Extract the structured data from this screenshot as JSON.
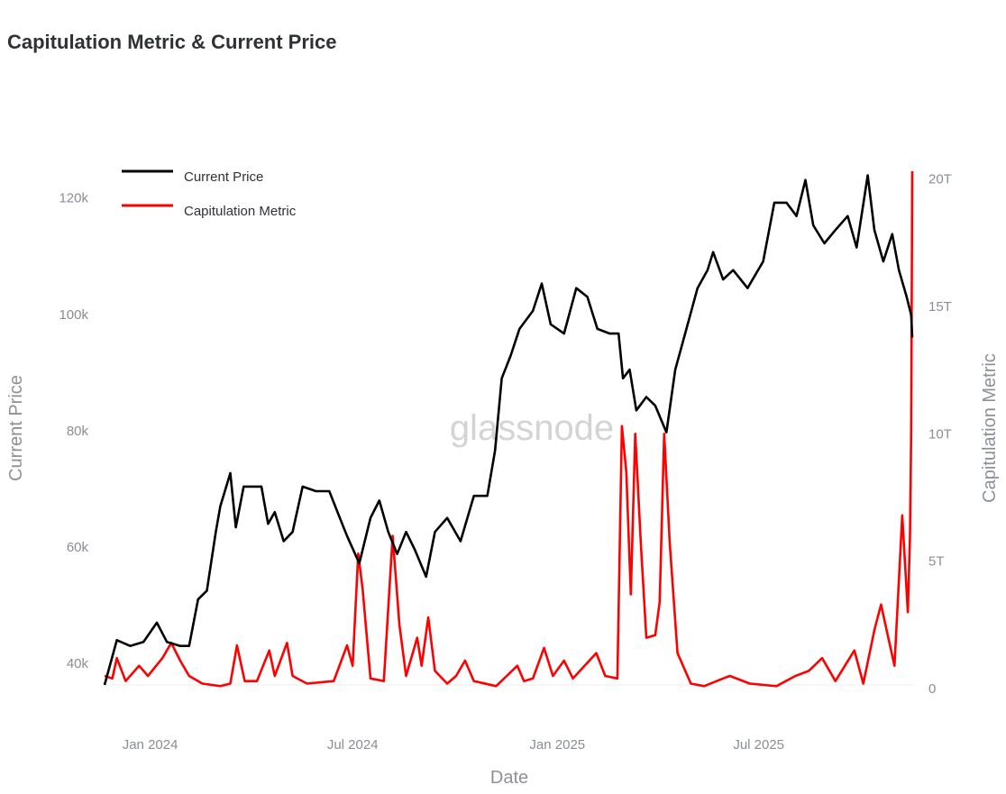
{
  "chart_data": {
    "type": "line",
    "title": "Capitulation Metric & Current Price",
    "xlabel": "Date",
    "ylabel_left": "Current Price",
    "ylabel_right": "Capitulation Metric",
    "watermark": "glassnode",
    "xlim": [
      "2023-11-21",
      "2025-11-16"
    ],
    "ylim_left": [
      33200,
      124600
    ],
    "ylim_right": [
      -0.56,
      20.3
    ],
    "grid": false,
    "legend_position": "top-left",
    "x_ticks": [
      {
        "date": "2024-01-01",
        "label": "Jan 2024"
      },
      {
        "date": "2024-07-01",
        "label": "Jul 2024"
      },
      {
        "date": "2025-01-01",
        "label": "Jan 2025"
      },
      {
        "date": "2025-07-01",
        "label": "Jul 2025"
      }
    ],
    "y_ticks_left": [
      {
        "value": 40000,
        "label": "40k"
      },
      {
        "value": 60000,
        "label": "60k"
      },
      {
        "value": 80000,
        "label": "80k"
      },
      {
        "value": 100000,
        "label": "100k"
      },
      {
        "value": 120000,
        "label": "120k"
      }
    ],
    "y_ticks_right": [
      {
        "value": 0,
        "label": "0"
      },
      {
        "value": 5,
        "label": "5T"
      },
      {
        "value": 10,
        "label": "10T"
      },
      {
        "value": 15,
        "label": "15T"
      },
      {
        "value": 20,
        "label": "20T"
      }
    ],
    "series": [
      {
        "name": "Current Price",
        "color": "#000000",
        "axis": "left",
        "points": [
          [
            "2023-11-21",
            36300
          ],
          [
            "2023-12-02",
            44000
          ],
          [
            "2023-12-14",
            43000
          ],
          [
            "2023-12-26",
            43700
          ],
          [
            "2024-01-07",
            47000
          ],
          [
            "2024-01-16",
            43700
          ],
          [
            "2024-01-28",
            43000
          ],
          [
            "2024-02-05",
            43000
          ],
          [
            "2024-02-13",
            51000
          ],
          [
            "2024-02-21",
            52500
          ],
          [
            "2024-02-29",
            62600
          ],
          [
            "2024-03-04",
            67000
          ],
          [
            "2024-03-13",
            72700
          ],
          [
            "2024-03-18",
            63400
          ],
          [
            "2024-03-25",
            70400
          ],
          [
            "2024-04-02",
            70400
          ],
          [
            "2024-04-10",
            70400
          ],
          [
            "2024-04-16",
            64000
          ],
          [
            "2024-04-22",
            66000
          ],
          [
            "2024-04-30",
            61000
          ],
          [
            "2024-05-08",
            62600
          ],
          [
            "2024-05-17",
            70400
          ],
          [
            "2024-05-29",
            69600
          ],
          [
            "2024-06-10",
            69600
          ],
          [
            "2024-06-18",
            65700
          ],
          [
            "2024-06-26",
            61900
          ],
          [
            "2024-07-07",
            57200
          ],
          [
            "2024-07-17",
            65000
          ],
          [
            "2024-07-25",
            68000
          ],
          [
            "2024-08-02",
            62600
          ],
          [
            "2024-08-10",
            58800
          ],
          [
            "2024-08-18",
            62600
          ],
          [
            "2024-08-26",
            59500
          ],
          [
            "2024-09-05",
            54900
          ],
          [
            "2024-09-13",
            62600
          ],
          [
            "2024-09-24",
            65000
          ],
          [
            "2024-10-06",
            61000
          ],
          [
            "2024-10-18",
            68800
          ],
          [
            "2024-10-30",
            68800
          ],
          [
            "2024-11-06",
            76600
          ],
          [
            "2024-11-12",
            89000
          ],
          [
            "2024-11-20",
            92900
          ],
          [
            "2024-11-28",
            97500
          ],
          [
            "2024-12-10",
            100600
          ],
          [
            "2024-12-18",
            105300
          ],
          [
            "2024-12-26",
            98300
          ],
          [
            "2025-01-07",
            96700
          ],
          [
            "2025-01-18",
            104500
          ],
          [
            "2025-01-28",
            103000
          ],
          [
            "2025-02-06",
            97500
          ],
          [
            "2025-02-17",
            96700
          ],
          [
            "2025-02-25",
            96700
          ],
          [
            "2025-03-01",
            89000
          ],
          [
            "2025-03-07",
            90500
          ],
          [
            "2025-03-13",
            83500
          ],
          [
            "2025-03-22",
            85800
          ],
          [
            "2025-03-30",
            84300
          ],
          [
            "2025-04-09",
            79700
          ],
          [
            "2025-04-17",
            90500
          ],
          [
            "2025-04-27",
            97500
          ],
          [
            "2025-05-07",
            104500
          ],
          [
            "2025-05-16",
            107600
          ],
          [
            "2025-05-21",
            110700
          ],
          [
            "2025-05-30",
            106000
          ],
          [
            "2025-06-08",
            107600
          ],
          [
            "2025-06-21",
            104500
          ],
          [
            "2025-07-05",
            109100
          ],
          [
            "2025-07-15",
            119200
          ],
          [
            "2025-07-26",
            119200
          ],
          [
            "2025-08-04",
            116900
          ],
          [
            "2025-08-12",
            123100
          ],
          [
            "2025-08-19",
            115300
          ],
          [
            "2025-08-29",
            112200
          ],
          [
            "2025-09-08",
            114500
          ],
          [
            "2025-09-19",
            116900
          ],
          [
            "2025-09-27",
            111500
          ],
          [
            "2025-10-07",
            123900
          ],
          [
            "2025-10-13",
            114500
          ],
          [
            "2025-10-21",
            109100
          ],
          [
            "2025-10-29",
            113800
          ],
          [
            "2025-11-04",
            107600
          ],
          [
            "2025-11-11",
            103000
          ],
          [
            "2025-11-15",
            99900
          ],
          [
            "2025-11-16",
            96000
          ]
        ]
      },
      {
        "name": "Capitulation Metric",
        "color": "#ff0000",
        "axis": "right",
        "unit": "T",
        "points": [
          [
            "2023-11-21",
            0.5
          ],
          [
            "2023-11-28",
            0.4
          ],
          [
            "2023-12-02",
            1.2
          ],
          [
            "2023-12-10",
            0.3
          ],
          [
            "2023-12-22",
            0.9
          ],
          [
            "2023-12-30",
            0.5
          ],
          [
            "2024-01-12",
            1.2
          ],
          [
            "2024-01-20",
            1.8
          ],
          [
            "2024-01-28",
            1.1
          ],
          [
            "2024-02-05",
            0.5
          ],
          [
            "2024-02-17",
            0.2
          ],
          [
            "2024-03-04",
            0.1
          ],
          [
            "2024-03-13",
            0.2
          ],
          [
            "2024-03-19",
            1.7
          ],
          [
            "2024-03-26",
            0.3
          ],
          [
            "2024-04-06",
            0.3
          ],
          [
            "2024-04-17",
            1.5
          ],
          [
            "2024-04-22",
            0.5
          ],
          [
            "2024-05-03",
            1.8
          ],
          [
            "2024-05-08",
            0.5
          ],
          [
            "2024-05-21",
            0.2
          ],
          [
            "2024-06-14",
            0.3
          ],
          [
            "2024-06-26",
            1.7
          ],
          [
            "2024-07-01",
            0.9
          ],
          [
            "2024-07-06",
            5.3
          ],
          [
            "2024-07-10",
            3.9
          ],
          [
            "2024-07-17",
            0.4
          ],
          [
            "2024-07-29",
            0.3
          ],
          [
            "2024-08-06",
            6.0
          ],
          [
            "2024-08-12",
            2.5
          ],
          [
            "2024-08-18",
            0.5
          ],
          [
            "2024-08-28",
            2.0
          ],
          [
            "2024-09-01",
            0.9
          ],
          [
            "2024-09-07",
            2.8
          ],
          [
            "2024-09-13",
            0.7
          ],
          [
            "2024-09-24",
            0.2
          ],
          [
            "2024-10-02",
            0.5
          ],
          [
            "2024-10-10",
            1.1
          ],
          [
            "2024-10-18",
            0.3
          ],
          [
            "2024-11-07",
            0.1
          ],
          [
            "2024-11-26",
            0.9
          ],
          [
            "2024-12-02",
            0.3
          ],
          [
            "2024-12-10",
            0.4
          ],
          [
            "2024-12-20",
            1.6
          ],
          [
            "2024-12-28",
            0.5
          ],
          [
            "2025-01-07",
            1.1
          ],
          [
            "2025-01-15",
            0.4
          ],
          [
            "2025-02-05",
            1.4
          ],
          [
            "2025-02-13",
            0.5
          ],
          [
            "2025-02-24",
            0.4
          ],
          [
            "2025-02-28",
            10.3
          ],
          [
            "2025-03-04",
            8.5
          ],
          [
            "2025-03-08",
            3.7
          ],
          [
            "2025-03-12",
            10.0
          ],
          [
            "2025-03-17",
            5.7
          ],
          [
            "2025-03-22",
            2.0
          ],
          [
            "2025-03-30",
            2.1
          ],
          [
            "2025-04-03",
            3.4
          ],
          [
            "2025-04-07",
            10.0
          ],
          [
            "2025-04-12",
            5.7
          ],
          [
            "2025-04-19",
            1.4
          ],
          [
            "2025-05-01",
            0.2
          ],
          [
            "2025-05-13",
            0.1
          ],
          [
            "2025-05-30",
            0.4
          ],
          [
            "2025-06-05",
            0.5
          ],
          [
            "2025-06-23",
            0.2
          ],
          [
            "2025-07-17",
            0.1
          ],
          [
            "2025-08-03",
            0.5
          ],
          [
            "2025-08-15",
            0.7
          ],
          [
            "2025-08-27",
            1.2
          ],
          [
            "2025-09-08",
            0.3
          ],
          [
            "2025-09-25",
            1.5
          ],
          [
            "2025-10-03",
            0.2
          ],
          [
            "2025-10-13",
            2.3
          ],
          [
            "2025-10-19",
            3.3
          ],
          [
            "2025-10-25",
            2.1
          ],
          [
            "2025-10-31",
            0.9
          ],
          [
            "2025-11-07",
            6.8
          ],
          [
            "2025-11-12",
            3.0
          ],
          [
            "2025-11-14",
            6.0
          ],
          [
            "2025-11-15",
            10.0
          ],
          [
            "2025-11-16",
            20.3
          ]
        ]
      }
    ]
  }
}
